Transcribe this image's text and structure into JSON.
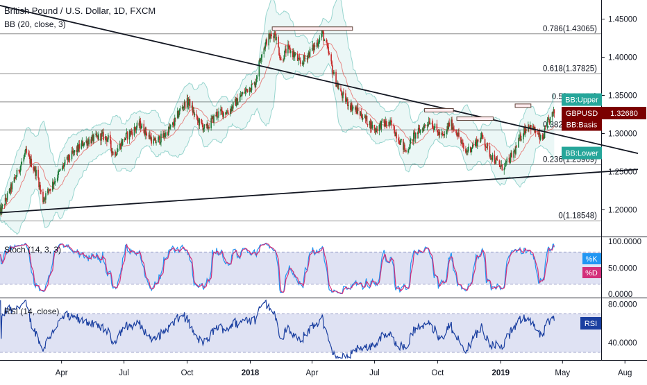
{
  "chart_data": [
    {
      "type": "candlestick",
      "title": "British Pound / U.S. Dollar, 1D, FXCM",
      "indicator_label": "BB (20, close, 3)",
      "ylim": [
        1.165,
        1.475
      ],
      "y_ticks": [
        "1.45000",
        "1.40000",
        "1.35000",
        "1.30000",
        "1.25000",
        "1.20000"
      ],
      "y_tick_values": [
        1.45,
        1.4,
        1.35,
        1.3,
        1.25,
        1.2
      ],
      "x_tick_labels": [
        "Apr",
        "Jul",
        "Oct",
        "2018",
        "Apr",
        "Jul",
        "Oct",
        "2019",
        "May",
        "Aug"
      ],
      "x_tick_bold": [
        false,
        false,
        false,
        true,
        false,
        false,
        false,
        true,
        false,
        false
      ],
      "x_tick_days": [
        90,
        181,
        273,
        365,
        455,
        546,
        638,
        730,
        820,
        911
      ],
      "fib_levels": [
        {
          "label": "0.786(1.43065)",
          "value": 1.43065
        },
        {
          "label": "0.618(1.37825)",
          "value": 1.37825
        },
        {
          "label": "0.5(1.34150)",
          "value": 1.3415
        },
        {
          "label": "0.382(1.30475)",
          "value": 1.30475
        },
        {
          "label": "0.236(1.25909)",
          "value": 1.25909
        },
        {
          "label": "0(1.18548)",
          "value": 1.18548
        }
      ],
      "price_tags": [
        {
          "label": "BB:Upper",
          "value": 1.3445,
          "color": "#26a69a"
        },
        {
          "label": "GBPUSD",
          "price": "1.32680",
          "value": 1.3268,
          "color": "#7b0000"
        },
        {
          "label": "BB:Basis",
          "value": 1.3118,
          "color": "#7b0000"
        },
        {
          "label": "BB:Lower",
          "value": 1.2745,
          "color": "#26a69a"
        }
      ],
      "trendlines": [
        {
          "points": [
            [
              -20,
              1.472
            ],
            [
              930,
              1.274
            ]
          ]
        },
        {
          "points": [
            [
              -20,
              1.195
            ],
            [
              930,
              1.253
            ]
          ]
        }
      ],
      "resistance_marks": [
        {
          "day": [
            397,
            514
          ],
          "value": 1.4375
        },
        {
          "day": [
            619,
            661
          ],
          "value": 1.3305
        },
        {
          "day": [
            666,
            719
          ],
          "value": 1.3195
        },
        {
          "day": [
            751,
            774
          ],
          "value": 1.3365
        }
      ],
      "series": [
        {
          "name": "close",
          "key_points": [
            [
              0,
              1.195
            ],
            [
              18,
              1.232
            ],
            [
              38,
              1.275
            ],
            [
              55,
              1.245
            ],
            [
              62,
              1.212
            ],
            [
              82,
              1.242
            ],
            [
              98,
              1.265
            ],
            [
              122,
              1.288
            ],
            [
              148,
              1.297
            ],
            [
              158,
              1.293
            ],
            [
              166,
              1.272
            ],
            [
              183,
              1.295
            ],
            [
              204,
              1.312
            ],
            [
              225,
              1.288
            ],
            [
              238,
              1.296
            ],
            [
              253,
              1.312
            ],
            [
              265,
              1.335
            ],
            [
              275,
              1.342
            ],
            [
              287,
              1.318
            ],
            [
              300,
              1.305
            ],
            [
              316,
              1.326
            ],
            [
              333,
              1.329
            ],
            [
              348,
              1.345
            ],
            [
              360,
              1.358
            ],
            [
              372,
              1.365
            ],
            [
              381,
              1.405
            ],
            [
              391,
              1.425
            ],
            [
              401,
              1.432
            ],
            [
              410,
              1.395
            ],
            [
              419,
              1.412
            ],
            [
              430,
              1.402
            ],
            [
              438,
              1.391
            ],
            [
              452,
              1.407
            ],
            [
              462,
              1.418
            ],
            [
              470,
              1.432
            ],
            [
              479,
              1.405
            ],
            [
              488,
              1.372
            ],
            [
              497,
              1.352
            ],
            [
              510,
              1.337
            ],
            [
              523,
              1.328
            ],
            [
              535,
              1.317
            ],
            [
              547,
              1.305
            ],
            [
              557,
              1.313
            ],
            [
              570,
              1.312
            ],
            [
              580,
              1.296
            ],
            [
              592,
              1.276
            ],
            [
              603,
              1.296
            ],
            [
              614,
              1.305
            ],
            [
              627,
              1.318
            ],
            [
              637,
              1.302
            ],
            [
              647,
              1.295
            ],
            [
              656,
              1.315
            ],
            [
              666,
              1.302
            ],
            [
              678,
              1.275
            ],
            [
              690,
              1.285
            ],
            [
              703,
              1.296
            ],
            [
              713,
              1.275
            ],
            [
              722,
              1.265
            ],
            [
              731,
              1.255
            ],
            [
              741,
              1.263
            ],
            [
              751,
              1.278
            ],
            [
              762,
              1.302
            ],
            [
              771,
              1.312
            ],
            [
              781,
              1.302
            ],
            [
              790,
              1.29
            ],
            [
              798,
              1.313
            ],
            [
              808,
              1.328
            ]
          ]
        }
      ]
    },
    {
      "type": "line",
      "title": "Stoch (14, 3, 3)",
      "ylim": [
        0,
        100
      ],
      "y_ticks": [
        "100.0000",
        "50.0000",
        "0.0000"
      ],
      "band": [
        20,
        80
      ],
      "series": [
        {
          "name": "%K",
          "color": "#2196f3"
        },
        {
          "name": "%D",
          "color": "#d32f7a"
        }
      ]
    },
    {
      "type": "line",
      "title": "RSI (14, close)",
      "ylim": [
        22,
        86
      ],
      "y_ticks": [
        "80.0000",
        "40.0000"
      ],
      "band": [
        30,
        70
      ],
      "series": [
        {
          "name": "RSI",
          "color": "#1a3fa0"
        }
      ]
    }
  ]
}
